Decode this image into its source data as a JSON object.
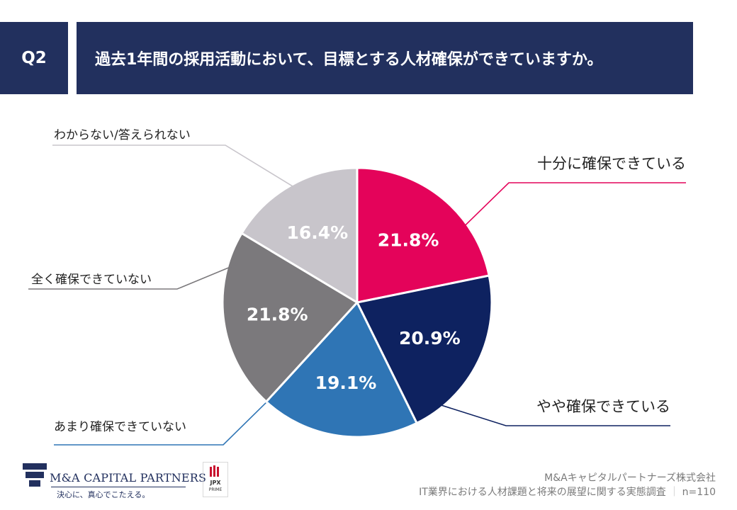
{
  "header": {
    "question_label": "Q2",
    "title": "過去1年間の採用活動において、目標とする人材確保ができていますか。"
  },
  "chart_data": {
    "type": "pie",
    "title": "",
    "slices": [
      {
        "label": "十分に確保できている",
        "value": 21.8,
        "value_label": "21.8%",
        "color": "#e4035a"
      },
      {
        "label": "やや確保できている",
        "value": 20.9,
        "value_label": "20.9%",
        "color": "#0e2260"
      },
      {
        "label": "あまり確保できていない",
        "value": 19.1,
        "value_label": "19.1%",
        "color": "#2f75b5"
      },
      {
        "label": "全く確保できていない",
        "value": 21.8,
        "value_label": "21.8%",
        "color": "#7b797c"
      },
      {
        "label": "わからない/答えられない",
        "value": 16.4,
        "value_label": "16.4%",
        "color": "#c8c5cb"
      }
    ]
  },
  "footer": {
    "company": "M&Aキャピタルパートナーズ株式会社",
    "survey": "IT業界における人材課題と将来の展望に関する実態調査",
    "sample": "n=110",
    "logo_name": "M&A CAPITAL PARTNERS",
    "logo_tagline": "決心に、真心でこたえる。",
    "jpx_line1": "JPX",
    "jpx_line2": "PRIME"
  }
}
